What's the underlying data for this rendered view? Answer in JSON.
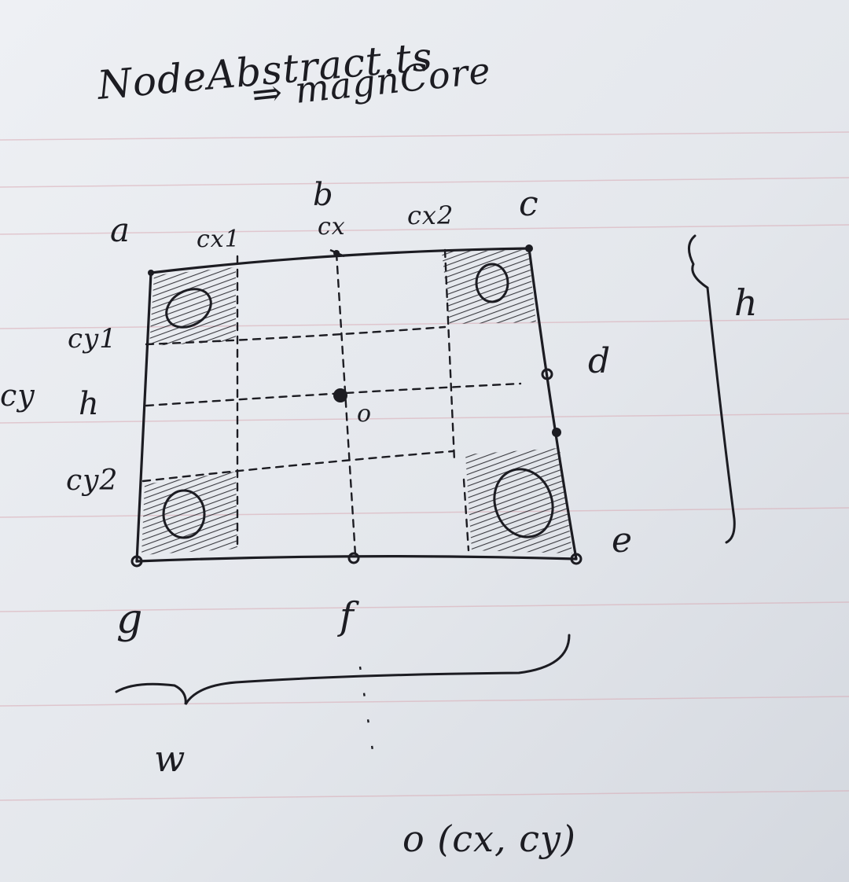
{
  "note": {
    "title": "NodeAbstract.ts",
    "subtitle": "⇒ magnCore"
  },
  "labels": {
    "corner_a": "a",
    "point_b": "b",
    "corner_c": "c",
    "point_d": "d",
    "corner_e": "e",
    "point_f": "f",
    "corner_g": "g",
    "point_h": "h",
    "center_o": "o",
    "cx": "cx",
    "cx1": "cx1",
    "cx2": "cx2",
    "cy": "cy",
    "cy1": "cy1",
    "cy2": "cy2",
    "height": "h",
    "width": "w",
    "formula": "o (cx, cy)"
  },
  "colors": {
    "paper": "#e6e9ee",
    "rule_line": "#d9a9b3",
    "ink": "#1c1c22"
  }
}
